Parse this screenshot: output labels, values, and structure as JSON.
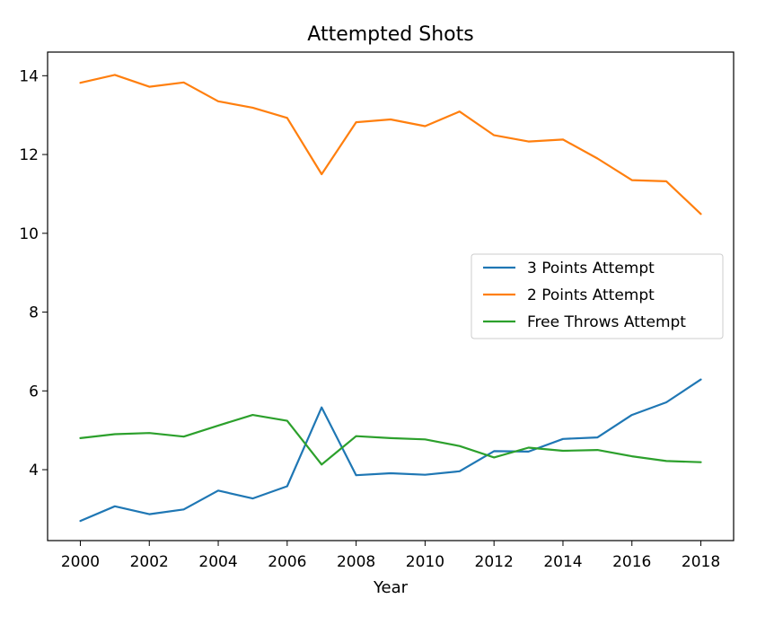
{
  "chart_data": {
    "type": "line",
    "title": "Attempted Shots",
    "xlabel": "Year",
    "ylabel": "",
    "x": [
      2000,
      2001,
      2002,
      2003,
      2004,
      2005,
      2006,
      2007,
      2008,
      2009,
      2010,
      2011,
      2012,
      2013,
      2014,
      2015,
      2016,
      2017,
      2018
    ],
    "xlim": [
      1999.05,
      2018.95
    ],
    "ylim": [
      2.2,
      14.6
    ],
    "xticks": [
      2000,
      2002,
      2004,
      2006,
      2008,
      2010,
      2012,
      2014,
      2016,
      2018
    ],
    "yticks": [
      4,
      6,
      8,
      10,
      12,
      14
    ],
    "grid": false,
    "legend_position": "center-right",
    "series": [
      {
        "name": "3 Points Attempt",
        "color": "#1f77b4",
        "values": [
          2.7,
          3.07,
          2.87,
          2.99,
          3.47,
          3.27,
          3.58,
          5.58,
          3.86,
          3.91,
          3.87,
          3.96,
          4.47,
          4.46,
          4.78,
          4.82,
          5.39,
          5.71,
          6.29
        ]
      },
      {
        "name": "2 Points Attempt",
        "color": "#ff7f0e",
        "values": [
          13.82,
          14.02,
          13.72,
          13.83,
          13.35,
          13.19,
          12.93,
          11.5,
          12.82,
          12.89,
          12.72,
          13.09,
          12.49,
          12.33,
          12.38,
          11.9,
          11.35,
          11.32,
          10.49
        ]
      },
      {
        "name": "Free Throws Attempt",
        "color": "#2ca02c",
        "values": [
          4.8,
          4.9,
          4.93,
          4.84,
          5.12,
          5.39,
          5.24,
          4.13,
          4.85,
          4.8,
          4.77,
          4.6,
          4.31,
          4.56,
          4.48,
          4.5,
          4.34,
          4.22,
          4.19
        ]
      }
    ]
  }
}
